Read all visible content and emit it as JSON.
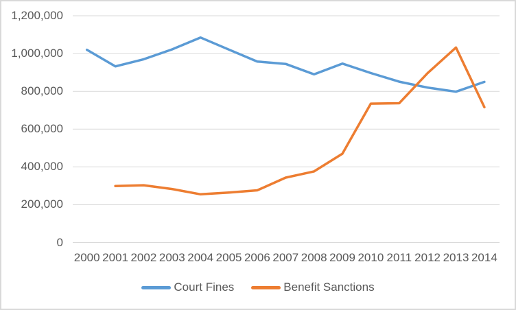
{
  "chart_data": {
    "type": "line",
    "title": "",
    "x": [
      "2000",
      "2001",
      "2002",
      "2003",
      "2004",
      "2005",
      "2006",
      "2007",
      "2008",
      "2009",
      "2010",
      "2011",
      "2012",
      "2013",
      "2014"
    ],
    "series": [
      {
        "name": "Court Fines",
        "color": "#5B9BD5",
        "values": [
          1020000,
          932000,
          970000,
          1022000,
          1085000,
          1021000,
          958000,
          945000,
          890000,
          947000,
          897000,
          851000,
          820000,
          798000,
          850000
        ]
      },
      {
        "name": "Benefit Sanctions",
        "color": "#ED7D31",
        "values": [
          null,
          299000,
          303000,
          283000,
          255000,
          264000,
          276000,
          343000,
          376000,
          470000,
          735000,
          737000,
          896000,
          1032000,
          716000
        ]
      }
    ],
    "y_ticks": [
      0,
      200000,
      400000,
      600000,
      800000,
      1000000,
      1200000
    ],
    "y_tick_labels": [
      "0",
      "200,000",
      "400,000",
      "600,000",
      "800,000",
      "1,000,000",
      "1,200,000"
    ],
    "ylim": [
      0,
      1200000
    ],
    "xlabel": "",
    "ylabel": "",
    "grid": true,
    "legend_position": "bottom",
    "grid_color": "#d9d9d9",
    "text_color": "#595959",
    "border_color": "#d9d9d9"
  }
}
